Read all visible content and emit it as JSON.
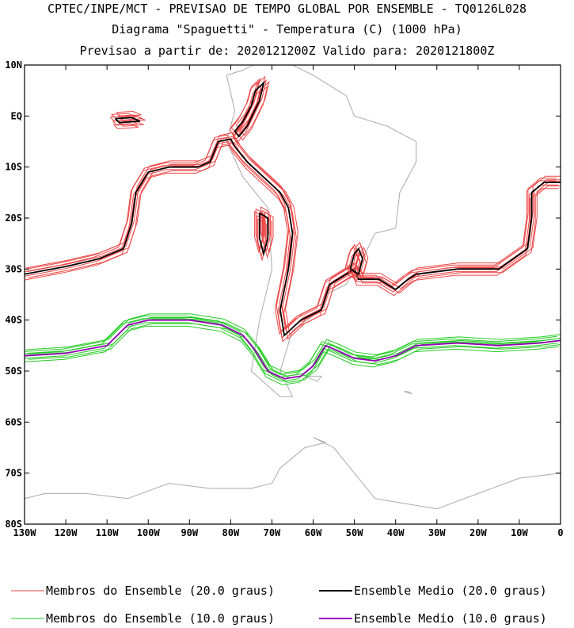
{
  "header": {
    "line1": "CPTEC/INPE/MCT - PREVISAO DE TEMPO GLOBAL POR ENSEMBLE - TQ0126L028",
    "line2": "Diagrama \"Spaguetti\" - Temperatura (C) (1000 hPa)",
    "line3": "Previsao a partir de: 2020121200Z  Valido para: 2020121800Z"
  },
  "chart_data": {
    "type": "line",
    "x_ticks": [
      "130W",
      "120W",
      "110W",
      "100W",
      "90W",
      "80W",
      "70W",
      "60W",
      "50W",
      "40W",
      "30W",
      "20W",
      "10W",
      "0"
    ],
    "y_ticks": [
      "10N",
      "EQ",
      "10S",
      "20S",
      "30S",
      "40S",
      "50S",
      "60S",
      "70S",
      "80S"
    ],
    "xlim": [
      -130,
      0
    ],
    "ylim": [
      -80,
      10
    ],
    "colors": {
      "member20": "#ee4444",
      "mean20": "#000000",
      "member10": "#22cc22",
      "mean10": "#9900bb",
      "coast": "#aaaaaa"
    },
    "legend": {
      "member20": "Membros do Ensemble (20.0 graus)",
      "mean20": "Ensemble Medio (20.0 graus)",
      "member10": "Membros do Ensemble (10.0 graus)",
      "mean10": "Ensemble Medio (10.0 graus)"
    },
    "series": [
      {
        "name": "Ensemble Medio (20.0 graus)",
        "points": [
          [
            -130,
            -31
          ],
          [
            -120,
            -29.5
          ],
          [
            -112,
            -28
          ],
          [
            -106,
            -26
          ],
          [
            -104,
            -21
          ],
          [
            -103,
            -15
          ],
          [
            -100,
            -11
          ],
          [
            -95,
            -10
          ],
          [
            -88,
            -10
          ],
          [
            -85,
            -9
          ],
          [
            -83,
            -5
          ],
          [
            -80,
            -4.5
          ],
          [
            -79,
            -6
          ],
          [
            -76,
            -9
          ],
          [
            -72,
            -12
          ],
          [
            -68,
            -15
          ],
          [
            -66,
            -18
          ],
          [
            -65,
            -23
          ],
          [
            -66,
            -30
          ],
          [
            -68,
            -38
          ],
          [
            -67,
            -43
          ],
          [
            -63,
            -40
          ],
          [
            -58,
            -38
          ],
          [
            -56,
            -33
          ],
          [
            -52,
            -31
          ],
          [
            -50,
            -30
          ],
          [
            -49,
            -32
          ],
          [
            -44,
            -32
          ],
          [
            -40,
            -34
          ],
          [
            -37,
            -32
          ],
          [
            -35,
            -31
          ],
          [
            -25,
            -30
          ],
          [
            -15,
            -30
          ],
          [
            -8,
            -26
          ],
          [
            -7,
            -20
          ],
          [
            -7,
            -15
          ],
          [
            -4,
            -13
          ],
          [
            0,
            -13
          ]
        ]
      },
      {
        "name": "Ensemble Medio (10.0 graus)",
        "points": [
          [
            -130,
            -47
          ],
          [
            -120,
            -46.5
          ],
          [
            -110,
            -45
          ],
          [
            -105,
            -41
          ],
          [
            -100,
            -40
          ],
          [
            -90,
            -40
          ],
          [
            -82,
            -41
          ],
          [
            -77,
            -43
          ],
          [
            -74,
            -46
          ],
          [
            -71,
            -50
          ],
          [
            -67,
            -51.5
          ],
          [
            -63,
            -51
          ],
          [
            -60,
            -49
          ],
          [
            -57,
            -45
          ],
          [
            -54,
            -46
          ],
          [
            -50,
            -47.5
          ],
          [
            -45,
            -48
          ],
          [
            -40,
            -47
          ],
          [
            -35,
            -45
          ],
          [
            -25,
            -44.5
          ],
          [
            -15,
            -45
          ],
          [
            -5,
            -44.5
          ],
          [
            0,
            -44
          ]
        ]
      },
      {
        "name": "Ensemble Medio (20.0 graus)",
        "points": [
          [
            -79,
            -3
          ],
          [
            -77,
            -1
          ],
          [
            -75,
            2
          ],
          [
            -74,
            5
          ],
          [
            -72,
            6.5
          ],
          [
            -73,
            3
          ],
          [
            -76,
            -2
          ],
          [
            -78,
            -4
          ],
          [
            -79,
            -3
          ]
        ]
      },
      {
        "name": "Ensemble Medio (20.0 graus)",
        "points": [
          [
            -73,
            -19
          ],
          [
            -71,
            -20
          ],
          [
            -71,
            -24
          ],
          [
            -72,
            -27
          ],
          [
            -73,
            -24
          ],
          [
            -73,
            -19
          ]
        ]
      },
      {
        "name": "Ensemble Medio (20.0 graus)",
        "points": [
          [
            -108,
            -0.5
          ],
          [
            -104,
            -0.3
          ],
          [
            -102,
            -1
          ],
          [
            -107,
            -1.3
          ],
          [
            -108,
            -0.5
          ]
        ]
      },
      {
        "name": "Ensemble Medio (20.0 graus)",
        "points": [
          [
            -51,
            -30
          ],
          [
            -50,
            -27
          ],
          [
            -49,
            -26
          ],
          [
            -48,
            -28
          ],
          [
            -49,
            -31
          ],
          [
            -51,
            -30
          ]
        ]
      }
    ]
  }
}
